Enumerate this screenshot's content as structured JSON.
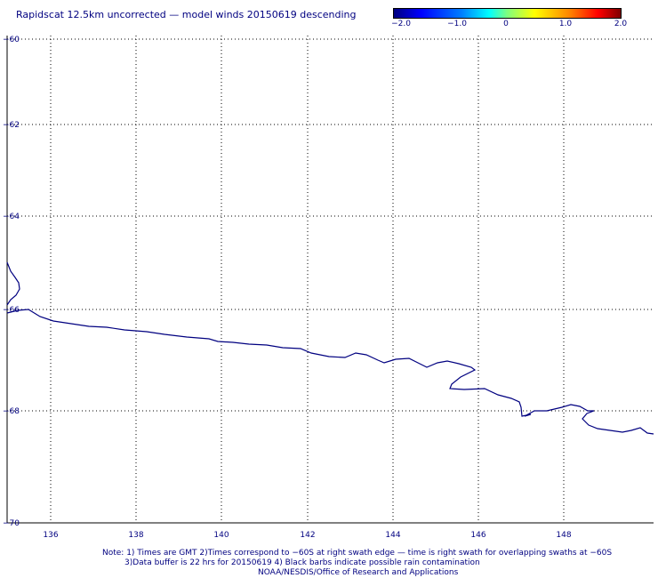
{
  "title": "Rapidscat 12.5km uncorrected — model winds 20150619 descending",
  "colorbar": {
    "labels": [
      "−2.0",
      "−1.0",
      "0",
      "1.0",
      "2.0"
    ]
  },
  "lat_labels": [
    "−60",
    "−62",
    "−64",
    "−66",
    "−68",
    "−70"
  ],
  "lon_labels": [
    "136",
    "138",
    "140",
    "142",
    "144",
    "146",
    "148"
  ],
  "notes": {
    "line1": "Note: 1) Times are GMT 2)Times correspond to −60S at right swath edge — time is right swath for overlapping swaths at −60S",
    "line2": "3)Data buffer is 22 hrs for 20150619 4) Black barbs indicate possible rain contamination",
    "line3": "NOAA/NESDIS/Office of Research and Applications"
  },
  "colors": {
    "text": "#000080",
    "coastline": "#000080",
    "grid": "#000000"
  }
}
